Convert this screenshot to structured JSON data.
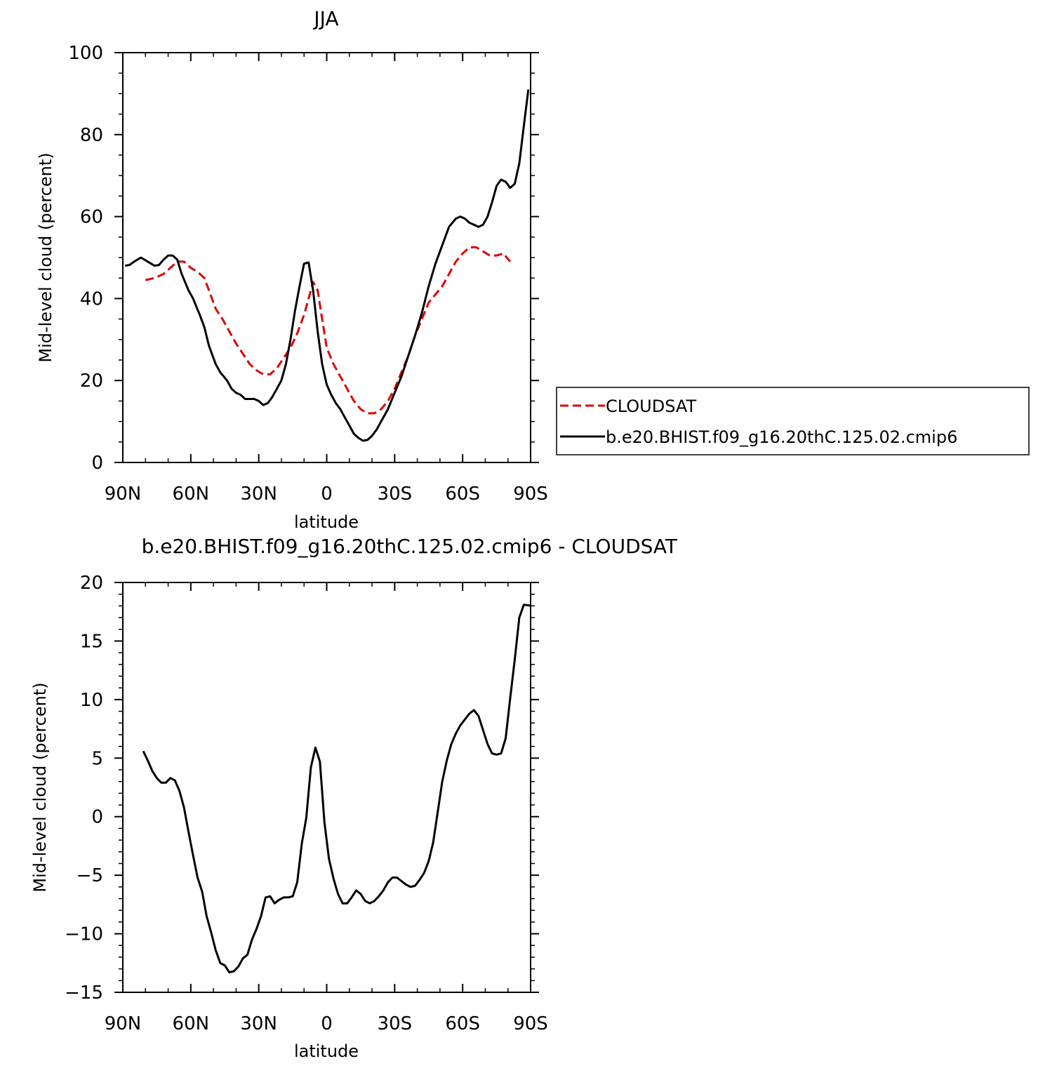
{
  "chart_data": [
    {
      "type": "line",
      "title": "JJA",
      "xlabel": "latitude",
      "ylabel": "Mid-level cloud (percent)",
      "xlim": [
        90,
        -90
      ],
      "ylim": [
        0,
        100
      ],
      "x_ticks": [
        {
          "value": 90,
          "label": "90N"
        },
        {
          "value": 60,
          "label": "60N"
        },
        {
          "value": 30,
          "label": "30N"
        },
        {
          "value": 0,
          "label": "0"
        },
        {
          "value": -30,
          "label": "30S"
        },
        {
          "value": -60,
          "label": "60S"
        },
        {
          "value": -90,
          "label": "90S"
        }
      ],
      "y_ticks": [
        {
          "value": 0,
          "label": "0"
        },
        {
          "value": 20,
          "label": "20"
        },
        {
          "value": 40,
          "label": "40"
        },
        {
          "value": 60,
          "label": "60"
        },
        {
          "value": 80,
          "label": "80"
        },
        {
          "value": 100,
          "label": "100"
        }
      ],
      "legend": {
        "position": "right"
      },
      "series": [
        {
          "name": "CLOUDSAT",
          "color": "#e00000",
          "dash": "dashed",
          "points": [
            [
              80,
              44.5
            ],
            [
              76,
              45
            ],
            [
              72,
              46
            ],
            [
              69,
              47.5
            ],
            [
              66,
              49
            ],
            [
              63,
              49
            ],
            [
              60,
              47.5
            ],
            [
              57,
              46.5
            ],
            [
              54,
              45
            ],
            [
              52,
              42
            ],
            [
              49,
              37.5
            ],
            [
              46,
              35
            ],
            [
              43,
              32
            ],
            [
              40,
              29
            ],
            [
              37,
              26.5
            ],
            [
              34,
              24
            ],
            [
              31,
              22.5
            ],
            [
              28,
              21.5
            ],
            [
              25,
              21.5
            ],
            [
              22,
              23
            ],
            [
              19,
              25.5
            ],
            [
              16,
              28
            ],
            [
              13,
              31.5
            ],
            [
              10,
              36
            ],
            [
              8,
              40
            ],
            [
              6,
              44
            ],
            [
              4,
              42
            ],
            [
              2,
              35
            ],
            [
              0,
              28
            ],
            [
              -3,
              24
            ],
            [
              -6,
              21
            ],
            [
              -9,
              18
            ],
            [
              -12,
              15
            ],
            [
              -15,
              13
            ],
            [
              -18,
              12
            ],
            [
              -21,
              12
            ],
            [
              -24,
              13
            ],
            [
              -27,
              15
            ],
            [
              -30,
              18
            ],
            [
              -33,
              22
            ],
            [
              -36,
              26
            ],
            [
              -39,
              31
            ],
            [
              -42,
              35
            ],
            [
              -45,
              39
            ],
            [
              -48,
              41
            ],
            [
              -51,
              43
            ],
            [
              -54,
              46
            ],
            [
              -57,
              49
            ],
            [
              -60,
              51
            ],
            [
              -63,
              52.5
            ],
            [
              -66,
              52.5
            ],
            [
              -69,
              51.5
            ],
            [
              -72,
              50.5
            ],
            [
              -75,
              50.5
            ],
            [
              -78,
              51
            ],
            [
              -81,
              49
            ]
          ]
        },
        {
          "name": "b.e20.BHIST.f09_g16.20thC.125.02.cmip6",
          "color": "#000000",
          "dash": "solid",
          "points": [
            [
              89,
              48
            ],
            [
              87,
              48.2
            ],
            [
              85,
              49
            ],
            [
              82,
              50
            ],
            [
              79,
              49
            ],
            [
              76,
              48
            ],
            [
              74,
              48.2
            ],
            [
              72,
              49.5
            ],
            [
              70,
              50.5
            ],
            [
              68,
              50.5
            ],
            [
              66,
              49.5
            ],
            [
              64,
              46
            ],
            [
              61,
              42
            ],
            [
              59,
              40
            ],
            [
              56,
              36
            ],
            [
              54,
              33
            ],
            [
              52,
              28.5
            ],
            [
              49,
              24
            ],
            [
              47,
              22
            ],
            [
              44,
              20
            ],
            [
              42,
              18
            ],
            [
              40,
              17
            ],
            [
              38,
              16.5
            ],
            [
              36,
              15.5
            ],
            [
              34,
              15.5
            ],
            [
              32,
              15.5
            ],
            [
              30,
              15
            ],
            [
              28,
              14
            ],
            [
              26,
              14.5
            ],
            [
              24,
              16
            ],
            [
              22,
              18
            ],
            [
              20,
              20
            ],
            [
              18,
              24
            ],
            [
              16,
              30
            ],
            [
              14,
              37
            ],
            [
              12,
              43
            ],
            [
              10,
              48.5
            ],
            [
              8,
              48.8
            ],
            [
              6,
              42
            ],
            [
              4,
              32
            ],
            [
              2,
              24
            ],
            [
              0,
              19
            ],
            [
              -2,
              16.5
            ],
            [
              -4,
              14.5
            ],
            [
              -6,
              13
            ],
            [
              -8,
              11
            ],
            [
              -10,
              9
            ],
            [
              -12,
              7
            ],
            [
              -14,
              6
            ],
            [
              -16,
              5.3
            ],
            [
              -18,
              5.5
            ],
            [
              -20,
              6.5
            ],
            [
              -22,
              8
            ],
            [
              -24,
              10
            ],
            [
              -27,
              13
            ],
            [
              -30,
              17
            ],
            [
              -33,
              21
            ],
            [
              -36,
              26
            ],
            [
              -39,
              31
            ],
            [
              -42,
              36.5
            ],
            [
              -45,
              43
            ],
            [
              -48,
              48.5
            ],
            [
              -51,
              53
            ],
            [
              -54,
              57.5
            ],
            [
              -57,
              59.5
            ],
            [
              -59,
              60
            ],
            [
              -61,
              59.5
            ],
            [
              -63,
              58.5
            ],
            [
              -65,
              58
            ],
            [
              -67,
              57.5
            ],
            [
              -69,
              58
            ],
            [
              -71,
              60
            ],
            [
              -73,
              63.5
            ],
            [
              -75,
              67.5
            ],
            [
              -77,
              69
            ],
            [
              -79,
              68.5
            ],
            [
              -81,
              67
            ],
            [
              -83,
              68
            ],
            [
              -85,
              73
            ],
            [
              -87,
              82
            ],
            [
              -89,
              91
            ]
          ]
        }
      ]
    },
    {
      "type": "line",
      "title": "b.e20.BHIST.f09_g16.20thC.125.02.cmip6 - CLOUDSAT",
      "xlabel": "latitude",
      "ylabel": "Mid-level cloud (percent)",
      "xlim": [
        90,
        -90
      ],
      "ylim": [
        -15,
        20
      ],
      "x_ticks": [
        {
          "value": 90,
          "label": "90N"
        },
        {
          "value": 60,
          "label": "60N"
        },
        {
          "value": 30,
          "label": "30N"
        },
        {
          "value": 0,
          "label": "0"
        },
        {
          "value": -30,
          "label": "30S"
        },
        {
          "value": -60,
          "label": "60S"
        },
        {
          "value": -90,
          "label": "90S"
        }
      ],
      "y_ticks": [
        {
          "value": -15,
          "label": "−15"
        },
        {
          "value": -10,
          "label": "−10"
        },
        {
          "value": -5,
          "label": "−5"
        },
        {
          "value": 0,
          "label": "0"
        },
        {
          "value": 5,
          "label": "5"
        },
        {
          "value": 10,
          "label": "10"
        },
        {
          "value": 15,
          "label": "15"
        },
        {
          "value": 20,
          "label": "20"
        }
      ],
      "series": [
        {
          "color": "#000000",
          "dash": "solid",
          "points": [
            [
              81,
              5.6
            ],
            [
              79,
              4.8
            ],
            [
              77,
              3.9
            ],
            [
              75,
              3.3
            ],
            [
              73,
              2.9
            ],
            [
              71,
              2.9
            ],
            [
              69,
              3.3
            ],
            [
              67,
              3.1
            ],
            [
              65,
              2.2
            ],
            [
              63,
              0.8
            ],
            [
              61,
              -1.3
            ],
            [
              59,
              -3.3
            ],
            [
              57,
              -5.2
            ],
            [
              55,
              -6.4
            ],
            [
              53,
              -8.5
            ],
            [
              51,
              -9.9
            ],
            [
              49,
              -11.4
            ],
            [
              47,
              -12.5
            ],
            [
              45,
              -12.7
            ],
            [
              43,
              -13.3
            ],
            [
              41,
              -13.2
            ],
            [
              39,
              -12.8
            ],
            [
              37,
              -12.1
            ],
            [
              35,
              -11.8
            ],
            [
              33,
              -10.5
            ],
            [
              31,
              -9.6
            ],
            [
              29,
              -8.5
            ],
            [
              27,
              -6.9
            ],
            [
              25,
              -6.8
            ],
            [
              23,
              -7.4
            ],
            [
              21,
              -7.1
            ],
            [
              19,
              -6.9
            ],
            [
              17,
              -6.9
            ],
            [
              15,
              -6.8
            ],
            [
              13,
              -5.6
            ],
            [
              11,
              -2.3
            ],
            [
              9,
              -0.1
            ],
            [
              7,
              4.2
            ],
            [
              5,
              5.9
            ],
            [
              3,
              4.7
            ],
            [
              1,
              -0.5
            ],
            [
              -1,
              -3.6
            ],
            [
              -3,
              -5.3
            ],
            [
              -5,
              -6.6
            ],
            [
              -7,
              -7.4
            ],
            [
              -9,
              -7.4
            ],
            [
              -11,
              -6.9
            ],
            [
              -13,
              -6.3
            ],
            [
              -15,
              -6.6
            ],
            [
              -17,
              -7.2
            ],
            [
              -19,
              -7.4
            ],
            [
              -21,
              -7.2
            ],
            [
              -23,
              -6.8
            ],
            [
              -25,
              -6.3
            ],
            [
              -27,
              -5.6
            ],
            [
              -29,
              -5.2
            ],
            [
              -31,
              -5.2
            ],
            [
              -33,
              -5.5
            ],
            [
              -35,
              -5.8
            ],
            [
              -37,
              -6
            ],
            [
              -39,
              -5.9
            ],
            [
              -41,
              -5.4
            ],
            [
              -43,
              -4.8
            ],
            [
              -45,
              -3.8
            ],
            [
              -47,
              -2.2
            ],
            [
              -49,
              0.4
            ],
            [
              -51,
              3
            ],
            [
              -53,
              4.8
            ],
            [
              -55,
              6.2
            ],
            [
              -57,
              7.1
            ],
            [
              -59,
              7.8
            ],
            [
              -61,
              8.3
            ],
            [
              -63,
              8.8
            ],
            [
              -65,
              9.1
            ],
            [
              -67,
              8.6
            ],
            [
              -69,
              7.4
            ],
            [
              -71,
              6.2
            ],
            [
              -73,
              5.4
            ],
            [
              -75,
              5.3
            ],
            [
              -77,
              5.4
            ],
            [
              -79,
              6.7
            ],
            [
              -81,
              10.1
            ],
            [
              -83,
              13.4
            ],
            [
              -85,
              17
            ],
            [
              -87,
              18.1
            ],
            [
              -91,
              18
            ]
          ]
        }
      ]
    }
  ]
}
